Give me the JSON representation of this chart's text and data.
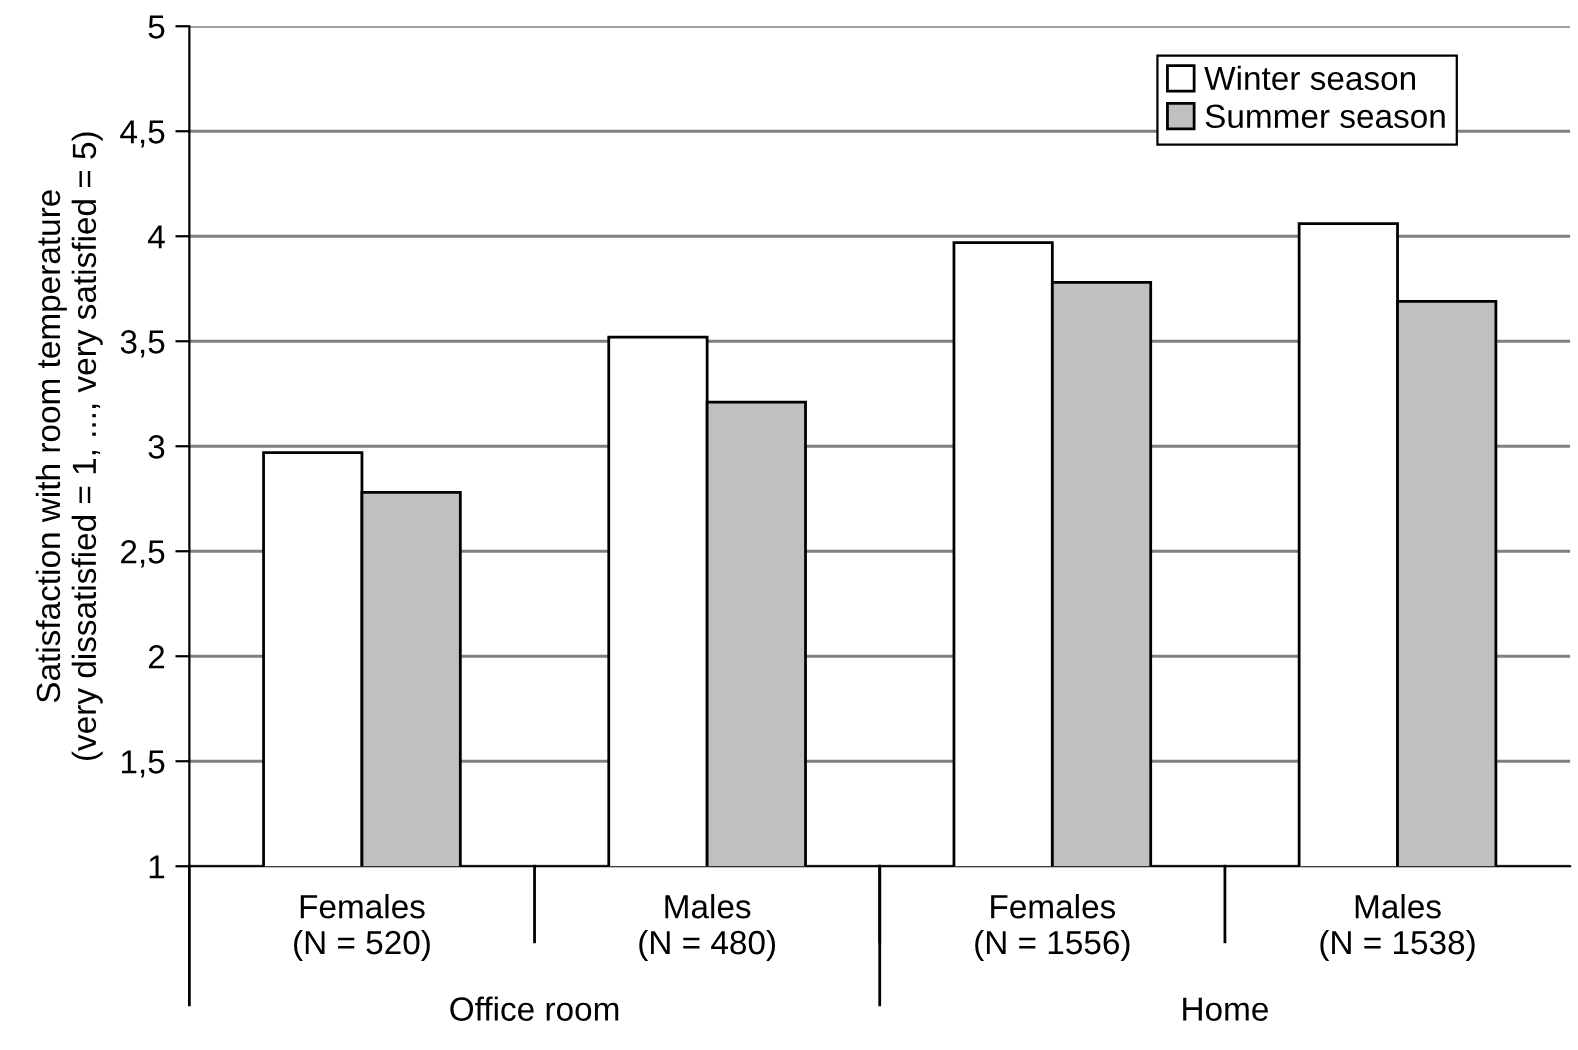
{
  "chart_data": {
    "type": "bar",
    "ylabel": "Satisfaction with room temperature\n(very dissatisfied = 1, ..., very satisfied = 5)",
    "categories": [
      "Females\n(N = 520)",
      "Males\n(N = 480)",
      "Females\n(N = 1556)",
      "Males\n(N = 1538)"
    ],
    "series": [
      {
        "name": "Winter season",
        "color": "#ffffff",
        "values": [
          2.97,
          3.52,
          3.97,
          4.06
        ]
      },
      {
        "name": "Summer season",
        "color": "#c0c0c0",
        "values": [
          2.78,
          3.21,
          3.78,
          3.69
        ]
      }
    ],
    "annotations": [
      "Office room",
      "Home"
    ],
    "ylim": [
      1,
      5
    ],
    "yticks": [
      {
        "value": 1,
        "label": "1"
      },
      {
        "value": 1.5,
        "label": "1,5"
      },
      {
        "value": 2,
        "label": "2"
      },
      {
        "value": 2.5,
        "label": "2,5"
      },
      {
        "value": 3,
        "label": "3"
      },
      {
        "value": 3.5,
        "label": "3,5"
      },
      {
        "value": 4,
        "label": "4"
      },
      {
        "value": 4.5,
        "label": "4,5"
      },
      {
        "value": 5,
        "label": "5"
      }
    ],
    "grid": "y",
    "legend": "top right"
  }
}
